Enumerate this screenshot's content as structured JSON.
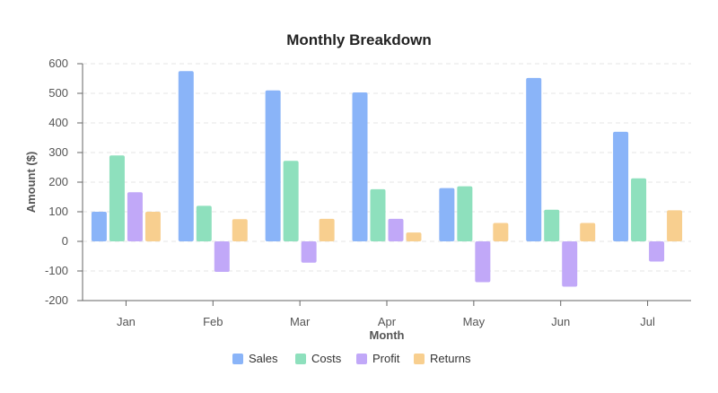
{
  "chart_data": {
    "type": "bar",
    "title": "Monthly Breakdown",
    "xlabel": "Month",
    "ylabel": "Amount ($)",
    "ylim": [
      -200,
      600
    ],
    "yticks": [
      -200,
      -100,
      0,
      100,
      200,
      300,
      400,
      500,
      600
    ],
    "grid": "horizontal dashed",
    "legend_position": "bottom",
    "categories": [
      "Jan",
      "Feb",
      "Mar",
      "Apr",
      "May",
      "Jun",
      "Jul"
    ],
    "series": [
      {
        "name": "Sales",
        "color": "#8ab4f8",
        "values": [
          100,
          575,
          510,
          503,
          180,
          552,
          370
        ]
      },
      {
        "name": "Costs",
        "color": "#8ee0bd",
        "values": [
          290,
          120,
          272,
          176,
          186,
          107,
          213
        ]
      },
      {
        "name": "Profit",
        "color": "#c1a8f8",
        "values": [
          166,
          -103,
          -72,
          76,
          -138,
          -153,
          -68
        ]
      },
      {
        "name": "Returns",
        "color": "#f8cf8f",
        "values": [
          100,
          75,
          76,
          30,
          62,
          62,
          105
        ]
      }
    ]
  }
}
